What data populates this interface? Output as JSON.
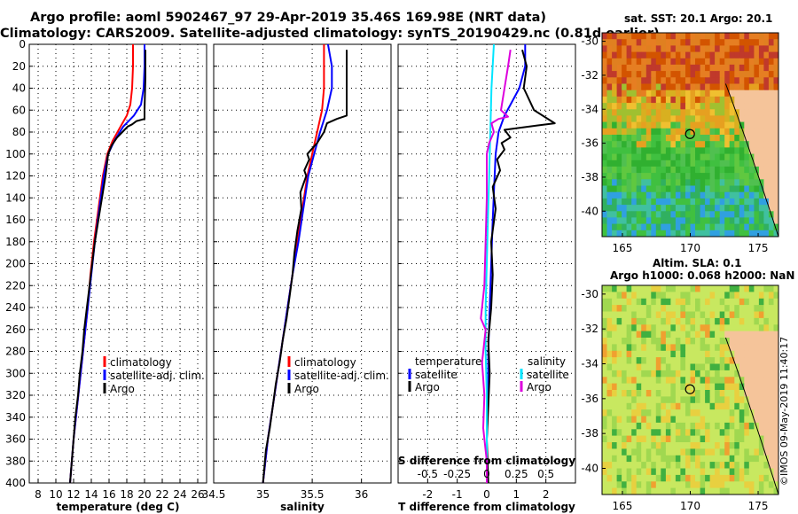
{
  "title_line1": "Argo profile: aoml 5902467_97 29-Apr-2019 35.46S 169.98E (NRT data)",
  "title_line2": "Climatology: CARS2009. Satellite-adjusted climatology: synTS_20190429.nc (0.81d earlier)",
  "colors": {
    "climatology": "#ff0000",
    "satellite": "#0000ff",
    "argo": "#000000",
    "sal_satellite": "#00e5ff",
    "sal_argo": "#dd00dd"
  },
  "chart_data": [
    {
      "type": "line",
      "id": "temperature",
      "xlabel": "temperature (deg C)",
      "ylabel": "",
      "xlim": [
        7,
        27
      ],
      "ylim": [
        400,
        0
      ],
      "x_ticks": [
        8,
        10,
        12,
        14,
        16,
        18,
        20,
        22,
        24,
        26
      ],
      "y_ticks": [
        0,
        20,
        40,
        60,
        80,
        100,
        120,
        140,
        160,
        180,
        200,
        220,
        240,
        260,
        280,
        300,
        320,
        340,
        360,
        380,
        400
      ],
      "legend": [
        "climatology",
        "satellite-adj. clim.",
        "Argo"
      ],
      "series": [
        {
          "name": "climatology",
          "color": "#ff0000",
          "points": [
            [
              18.7,
              0
            ],
            [
              18.7,
              20
            ],
            [
              18.6,
              40
            ],
            [
              18.4,
              55
            ],
            [
              18.0,
              65
            ],
            [
              17.3,
              75
            ],
            [
              16.4,
              88
            ],
            [
              15.8,
              100
            ],
            [
              15.3,
              120
            ],
            [
              14.8,
              150
            ],
            [
              14.3,
              180
            ],
            [
              13.9,
              210
            ],
            [
              13.6,
              240
            ],
            [
              13.2,
              270
            ],
            [
              12.8,
              300
            ],
            [
              12.4,
              330
            ],
            [
              12.0,
              360
            ],
            [
              11.6,
              400
            ]
          ]
        },
        {
          "name": "satellite-adj. clim.",
          "color": "#0000ff",
          "points": [
            [
              20.0,
              0
            ],
            [
              20.0,
              20
            ],
            [
              19.9,
              40
            ],
            [
              19.6,
              55
            ],
            [
              18.8,
              65
            ],
            [
              17.6,
              75
            ],
            [
              16.6,
              88
            ],
            [
              15.9,
              100
            ],
            [
              15.4,
              120
            ],
            [
              14.9,
              150
            ],
            [
              14.4,
              180
            ],
            [
              14.0,
              210
            ],
            [
              13.6,
              240
            ],
            [
              13.2,
              270
            ],
            [
              12.8,
              300
            ],
            [
              12.4,
              330
            ],
            [
              12.0,
              360
            ],
            [
              11.6,
              400
            ]
          ]
        },
        {
          "name": "Argo",
          "color": "#000000",
          "points": [
            [
              20.1,
              5
            ],
            [
              20.1,
              30
            ],
            [
              20.0,
              60
            ],
            [
              20.0,
              68
            ],
            [
              19.1,
              70
            ],
            [
              18.6,
              73
            ],
            [
              18.1,
              75
            ],
            [
              17.5,
              80
            ],
            [
              16.9,
              85
            ],
            [
              16.3,
              92
            ],
            [
              15.9,
              100
            ],
            [
              15.6,
              120
            ],
            [
              15.2,
              140
            ],
            [
              14.8,
              160
            ],
            [
              14.4,
              180
            ],
            [
              14.1,
              200
            ],
            [
              13.8,
              220
            ],
            [
              13.5,
              240
            ],
            [
              13.2,
              260
            ],
            [
              13.0,
              280
            ],
            [
              12.7,
              300
            ],
            [
              12.5,
              320
            ],
            [
              12.2,
              340
            ],
            [
              12.0,
              360
            ],
            [
              11.8,
              380
            ],
            [
              11.6,
              400
            ]
          ]
        }
      ]
    },
    {
      "type": "line",
      "id": "salinity",
      "xlabel": "salinity",
      "ylabel": "",
      "xlim": [
        34.5,
        36.3
      ],
      "ylim": [
        400,
        0
      ],
      "x_ticks": [
        34.5,
        35,
        35.5,
        36
      ],
      "legend": [
        "climatology",
        "satellite-adj. clim.",
        "Argo"
      ],
      "series": [
        {
          "name": "climatology",
          "color": "#ff0000",
          "points": [
            [
              35.62,
              0
            ],
            [
              35.62,
              40
            ],
            [
              35.6,
              60
            ],
            [
              35.55,
              80
            ],
            [
              35.5,
              100
            ],
            [
              35.45,
              120
            ],
            [
              35.4,
              150
            ],
            [
              35.35,
              180
            ],
            [
              35.3,
              210
            ],
            [
              35.25,
              240
            ],
            [
              35.2,
              270
            ],
            [
              35.15,
              300
            ],
            [
              35.1,
              330
            ],
            [
              35.05,
              360
            ],
            [
              35.0,
              400
            ]
          ]
        },
        {
          "name": "satellite-adj. clim.",
          "color": "#0000ff",
          "points": [
            [
              35.66,
              0
            ],
            [
              35.7,
              20
            ],
            [
              35.7,
              40
            ],
            [
              35.65,
              60
            ],
            [
              35.58,
              80
            ],
            [
              35.52,
              100
            ],
            [
              35.46,
              120
            ],
            [
              35.41,
              150
            ],
            [
              35.36,
              180
            ],
            [
              35.3,
              210
            ],
            [
              35.25,
              240
            ],
            [
              35.2,
              270
            ],
            [
              35.15,
              300
            ],
            [
              35.1,
              330
            ],
            [
              35.05,
              360
            ],
            [
              35.0,
              400
            ]
          ]
        },
        {
          "name": "Argo",
          "color": "#000000",
          "points": [
            [
              35.85,
              5
            ],
            [
              35.85,
              65
            ],
            [
              35.75,
              68
            ],
            [
              35.65,
              72
            ],
            [
              35.62,
              80
            ],
            [
              35.55,
              90
            ],
            [
              35.5,
              95
            ],
            [
              35.45,
              100
            ],
            [
              35.47,
              105
            ],
            [
              35.42,
              115
            ],
            [
              35.44,
              120
            ],
            [
              35.38,
              135
            ],
            [
              35.39,
              150
            ],
            [
              35.35,
              170
            ],
            [
              35.32,
              190
            ],
            [
              35.3,
              210
            ],
            [
              35.27,
              230
            ],
            [
              35.24,
              250
            ],
            [
              35.2,
              270
            ],
            [
              35.17,
              290
            ],
            [
              35.13,
              310
            ],
            [
              35.1,
              330
            ],
            [
              35.07,
              350
            ],
            [
              35.03,
              370
            ],
            [
              35.0,
              400
            ]
          ]
        }
      ]
    },
    {
      "type": "line",
      "id": "difference",
      "xlabel": "T difference from climatology",
      "xlabel_top": "S difference from climatology",
      "xlim": [
        -3,
        3
      ],
      "ylim": [
        400,
        0
      ],
      "x_ticks": [
        -2,
        -1,
        0,
        1,
        2
      ],
      "s_ticks": [
        {
          "value": -0.5,
          "label": "-0.5"
        },
        {
          "value": -0.25,
          "label": "-0.25"
        },
        {
          "value": 0,
          "label": "0"
        },
        {
          "value": 0.25,
          "label": "0.25"
        },
        {
          "value": 0.5,
          "label": "0.5"
        }
      ],
      "legend_left_header": "temperature",
      "legend_right_header": "salinity",
      "legend_left": [
        "satellite",
        "Argo"
      ],
      "legend_right": [
        "satellite",
        "Argo"
      ],
      "series": [
        {
          "name": "temperature satellite",
          "color": "#0000ff",
          "points": [
            [
              1.3,
              0
            ],
            [
              1.3,
              20
            ],
            [
              1.1,
              40
            ],
            [
              0.8,
              55
            ],
            [
              0.6,
              65
            ],
            [
              0.4,
              80
            ],
            [
              0.3,
              100
            ],
            [
              0.25,
              130
            ],
            [
              0.2,
              160
            ],
            [
              0.15,
              200
            ],
            [
              0.1,
              240
            ],
            [
              0.05,
              280
            ],
            [
              0.05,
              320
            ],
            [
              0.0,
              360
            ],
            [
              0.0,
              400
            ]
          ]
        },
        {
          "name": "temperature Argo",
          "color": "#000000",
          "points": [
            [
              1.2,
              5
            ],
            [
              1.35,
              20
            ],
            [
              1.25,
              40
            ],
            [
              1.6,
              60
            ],
            [
              2.3,
              72
            ],
            [
              1.7,
              74
            ],
            [
              0.6,
              78
            ],
            [
              0.8,
              85
            ],
            [
              0.5,
              90
            ],
            [
              0.6,
              96
            ],
            [
              0.35,
              105
            ],
            [
              0.45,
              115
            ],
            [
              0.2,
              130
            ],
            [
              0.3,
              150
            ],
            [
              0.15,
              180
            ],
            [
              0.2,
              210
            ],
            [
              0.15,
              240
            ],
            [
              0.05,
              270
            ],
            [
              0.1,
              300
            ],
            [
              0.05,
              330
            ],
            [
              0.0,
              360
            ],
            [
              0.05,
              400
            ]
          ]
        },
        {
          "name": "salinity satellite",
          "color": "#00e5ff",
          "points": [
            [
              0.06,
              0
            ],
            [
              0.04,
              40
            ],
            [
              0.03,
              80
            ],
            [
              0.02,
              120
            ],
            [
              0.01,
              160
            ],
            [
              0.0,
              200
            ],
            [
              -0.01,
              240
            ],
            [
              -0.01,
              280
            ],
            [
              0.0,
              320
            ],
            [
              0.0,
              360
            ],
            [
              0.0,
              400
            ]
          ]
        },
        {
          "name": "salinity Argo",
          "color": "#dd00dd",
          "points": [
            [
              0.2,
              5
            ],
            [
              0.18,
              20
            ],
            [
              0.15,
              40
            ],
            [
              0.12,
              60
            ],
            [
              0.18,
              66
            ],
            [
              0.1,
              68
            ],
            [
              0.04,
              72
            ],
            [
              0.06,
              80
            ],
            [
              0.02,
              90
            ],
            [
              0.0,
              100
            ],
            [
              0.0,
              140
            ],
            [
              -0.01,
              180
            ],
            [
              -0.02,
              220
            ],
            [
              -0.05,
              250
            ],
            [
              -0.01,
              260
            ],
            [
              -0.04,
              290
            ],
            [
              -0.02,
              320
            ],
            [
              -0.03,
              350
            ],
            [
              0.0,
              380
            ],
            [
              0.0,
              400
            ]
          ]
        }
      ]
    },
    {
      "type": "heatmap",
      "id": "sst_map",
      "title": "sat. SST: 20.1 Argo: 20.1",
      "xlim": [
        163.5,
        176.5
      ],
      "ylim": [
        -41.5,
        -29.5
      ],
      "x_ticks": [
        165,
        170,
        175
      ],
      "y_ticks": [
        -30,
        -32,
        -34,
        -36,
        -38,
        -40
      ],
      "argo_position": [
        169.98,
        -35.46
      ]
    },
    {
      "type": "heatmap",
      "id": "sla_map",
      "title_line1": "Altim. SLA: 0.1",
      "title_line2": "Argo h1000: 0.068 h2000: NaN",
      "xlim": [
        163.5,
        176.5
      ],
      "ylim": [
        -41.5,
        -29.5
      ],
      "x_ticks": [
        165,
        170,
        175
      ],
      "y_ticks": [
        -30,
        -32,
        -34,
        -36,
        -38,
        -40
      ],
      "argo_position": [
        169.98,
        -35.46
      ]
    }
  ],
  "stamp": "©IMOS 09-May-2019 11:40:17"
}
